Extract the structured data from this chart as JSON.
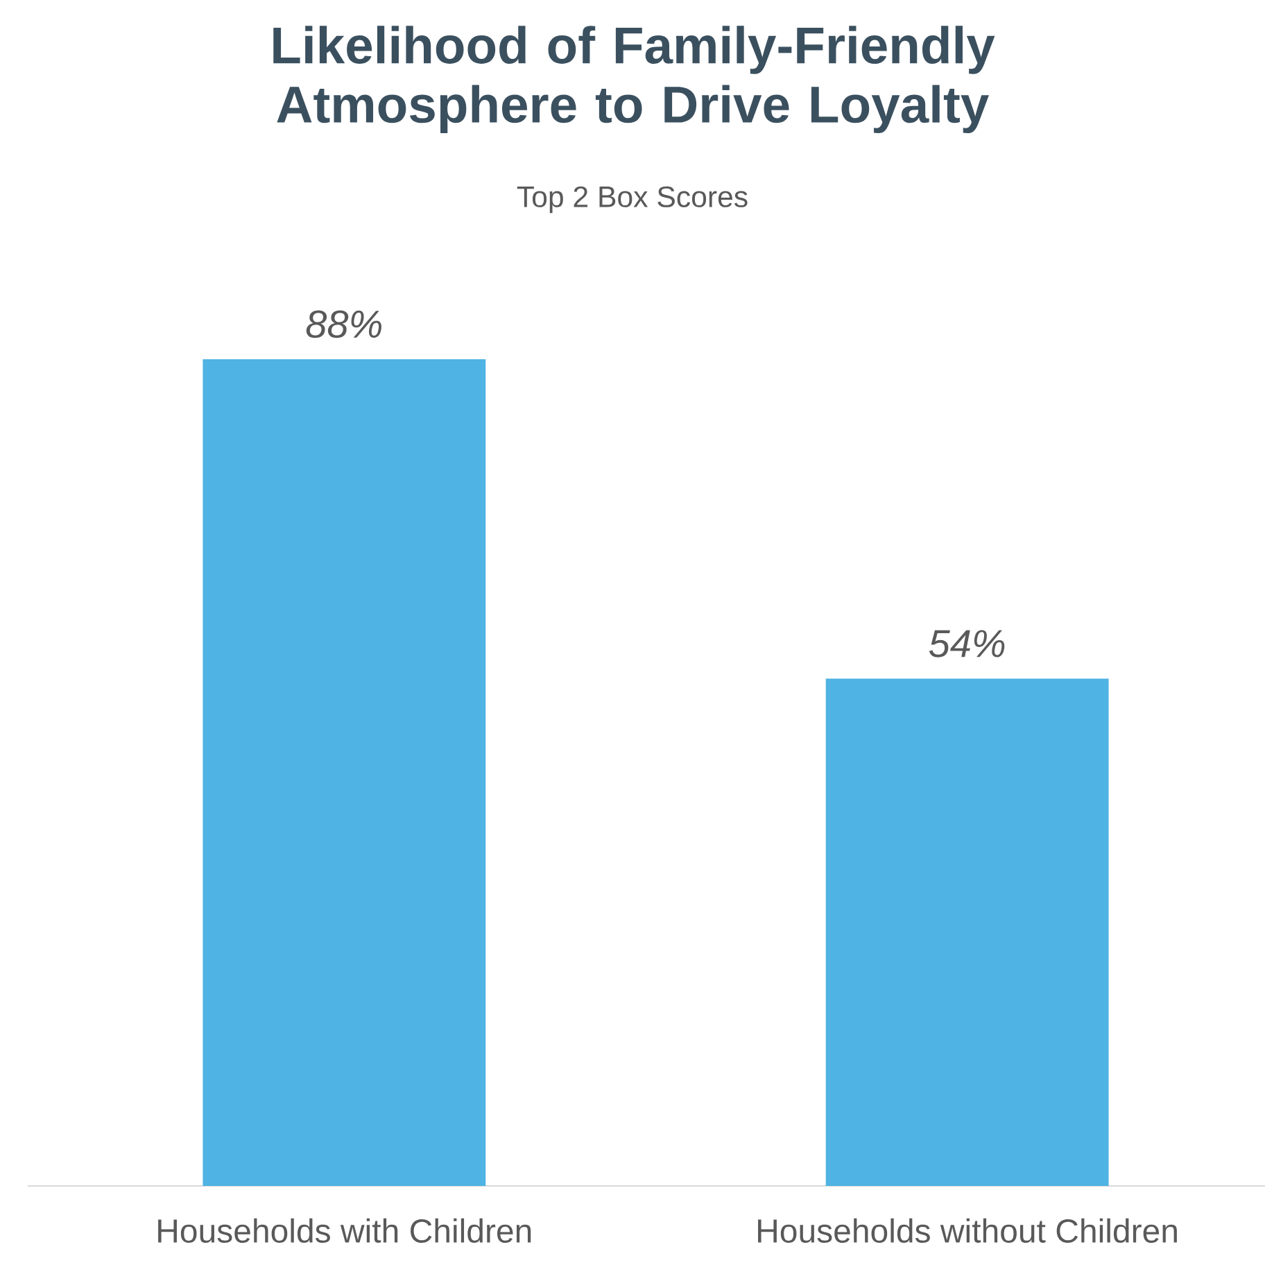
{
  "chart_data": {
    "type": "bar",
    "title": "Likelihood of Family-Friendly Atmosphere to Drive Loyalty",
    "subtitle": "Top 2 Box Scores",
    "categories": [
      "Households with Children",
      "Households without Children"
    ],
    "values": [
      88,
      54
    ],
    "value_labels": [
      "88%",
      "54%"
    ],
    "color": "#4fb3e3"
  }
}
